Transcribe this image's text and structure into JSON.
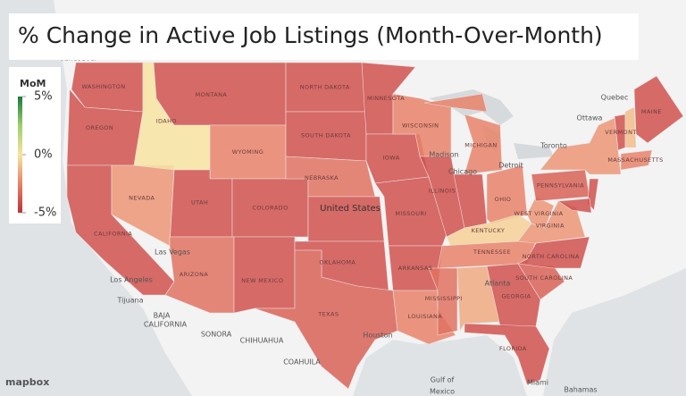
{
  "title": "% Change in Active Job Listings (Month-Over-Month)",
  "legend": {
    "title": "MoM",
    "range": [
      -5,
      5
    ],
    "ticks": [
      {
        "value": 5,
        "label": "5%"
      },
      {
        "value": 0,
        "label": "0%"
      },
      {
        "value": -5,
        "label": "-5%"
      }
    ],
    "colors": [
      "#c0303a",
      "#e8826a",
      "#f7e3a0",
      "#9ccf6e",
      "#1a7a3a"
    ]
  },
  "country_label": "United States",
  "states": [
    {
      "label": "WASHINGTON",
      "value": -4
    },
    {
      "label": "OREGON",
      "value": -4
    },
    {
      "label": "CALIFORNIA",
      "value": -4
    },
    {
      "label": "NEVADA",
      "value": -2
    },
    {
      "label": "IDAHO",
      "value": 0
    },
    {
      "label": "MONTANA",
      "value": -4
    },
    {
      "label": "WYOMING",
      "value": -2.5
    },
    {
      "label": "UTAH",
      "value": -4
    },
    {
      "label": "COLORADO",
      "value": -4
    },
    {
      "label": "ARIZONA",
      "value": -3
    },
    {
      "label": "NEW MEXICO",
      "value": -4
    },
    {
      "label": "NORTH DAKOTA",
      "value": -4
    },
    {
      "label": "SOUTH DAKOTA",
      "value": -4
    },
    {
      "label": "NEBRASKA",
      "value": -3
    },
    {
      "label": null,
      "value": -4
    },
    {
      "label": "OKLAHOMA",
      "value": -4
    },
    {
      "label": "TEXAS",
      "value": -3.5
    },
    {
      "label": "MINNESOTA",
      "value": -4
    },
    {
      "label": "IOWA",
      "value": -4
    },
    {
      "label": "MISSOURI",
      "value": -4
    },
    {
      "label": "ARKANSAS",
      "value": -4
    },
    {
      "label": "LOUISIANA",
      "value": -2.5
    },
    {
      "label": "WISCONSIN",
      "value": -2.5
    },
    {
      "label": "ILLINOIS",
      "value": -4
    },
    {
      "label": "MICHIGAN",
      "value": -2.5
    },
    {
      "label": null,
      "value": -4
    },
    {
      "label": "OHIO",
      "value": -2.5
    },
    {
      "label": "KENTUCKY",
      "value": -0.5
    },
    {
      "label": "TENNESSEE",
      "value": -2.5
    },
    {
      "label": "MISSISSIPPI",
      "value": -3
    },
    {
      "label": null,
      "value": -1.5
    },
    {
      "label": "GEORGIA",
      "value": -4
    },
    {
      "label": "FLORIDA",
      "value": -4
    },
    {
      "label": "SOUTH CAROLINA",
      "value": -3.5
    },
    {
      "label": "NORTH CAROLINA",
      "value": -4
    },
    {
      "label": "VIRGINIA",
      "value": -2
    },
    {
      "label": "WEST VIRGINIA",
      "value": -2
    },
    {
      "label": "PENNSYLVANIA",
      "value": -3.5
    },
    {
      "label": null,
      "value": -2
    },
    {
      "label": "VERMONT",
      "value": -4
    },
    {
      "label": null,
      "value": -1
    },
    {
      "label": "MAINE",
      "value": -4
    },
    {
      "label": "MASSACHUSETTS",
      "value": -2.5
    },
    {
      "label": null,
      "value": -4
    },
    {
      "label": null,
      "value": -4
    }
  ],
  "places": [
    "Vancouver",
    "Ottawa",
    "Quebec",
    "Toronto",
    "Chicago",
    "Detroit",
    "Madison",
    "Las Vegas",
    "Los Angeles",
    "Tijuana",
    "Atlanta",
    "Houston",
    "Miami",
    "Bahamas",
    "Gulf of",
    "Mexico",
    "SONORA",
    "CHIHUAHUA",
    "COAHUILA",
    "BAJA",
    "CALIFORNIA"
  ],
  "attribution": "mapbox"
}
